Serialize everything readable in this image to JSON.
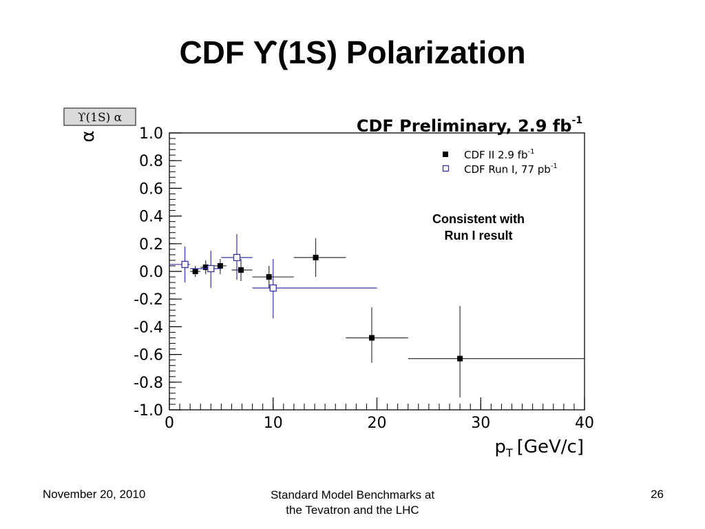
{
  "slide": {
    "title": "CDF ϒ(1S) Polarization",
    "footer_date": "November 20, 2010",
    "footer_center_line1": "Standard Model Benchmarks at",
    "footer_center_line2": "the Tevatron and the LHC",
    "page_number": "26"
  },
  "chart_data": {
    "type": "scatter",
    "title": "CDF Preliminary, 2.9 fb",
    "title_sup": "-1",
    "box_label": "ϒ(1S) α",
    "ylabel": "α",
    "xlabel_main": "p",
    "xlabel_sub": "T",
    "xlabel_unit": "[GeV/c]",
    "xlim": [
      0,
      40
    ],
    "ylim": [
      -1.0,
      1.0
    ],
    "x_ticks": [
      {
        "value": 0,
        "label": "0"
      },
      {
        "value": 10,
        "label": "10"
      },
      {
        "value": 20,
        "label": "20"
      },
      {
        "value": 30,
        "label": "30"
      },
      {
        "value": 40,
        "label": "40"
      }
    ],
    "y_ticks": [
      {
        "value": 1.0,
        "label": "1.0"
      },
      {
        "value": 0.8,
        "label": "0.8"
      },
      {
        "value": 0.6,
        "label": "0.6"
      },
      {
        "value": 0.4,
        "label": "0.4"
      },
      {
        "value": 0.2,
        "label": "0.2"
      },
      {
        "value": 0.0,
        "label": "0.0"
      },
      {
        "value": -0.2,
        "label": "-0.2"
      },
      {
        "value": -0.4,
        "label": "-0.4"
      },
      {
        "value": -0.6,
        "label": "-0.6"
      },
      {
        "value": -0.8,
        "label": "-0.8"
      },
      {
        "value": -1.0,
        "label": "-1.0"
      }
    ],
    "legend_placement": "top-right",
    "annotation_line1": "Consistent with",
    "annotation_line2": "Run I result",
    "series": [
      {
        "name": "CDF II 2.9 fb",
        "name_sup": "-1",
        "marker": "filled-square",
        "color": "#000000",
        "points": [
          {
            "x": 2.5,
            "y": 0.0,
            "xlo": 2.0,
            "xhi": 3.0,
            "ylo": -0.04,
            "yhi": 0.04
          },
          {
            "x": 3.5,
            "y": 0.03,
            "xlo": 3.0,
            "xhi": 4.0,
            "ylo": -0.02,
            "yhi": 0.08
          },
          {
            "x": 4.9,
            "y": 0.04,
            "xlo": 4.0,
            "xhi": 5.5,
            "ylo": -0.02,
            "yhi": 0.09
          },
          {
            "x": 6.9,
            "y": 0.01,
            "xlo": 6.0,
            "xhi": 8.0,
            "ylo": -0.07,
            "yhi": 0.09
          },
          {
            "x": 9.6,
            "y": -0.04,
            "xlo": 8.0,
            "xhi": 12.0,
            "ylo": -0.12,
            "yhi": 0.04
          },
          {
            "x": 14.1,
            "y": 0.1,
            "xlo": 12.0,
            "xhi": 17.0,
            "ylo": -0.04,
            "yhi": 0.24
          },
          {
            "x": 19.5,
            "y": -0.48,
            "xlo": 17.0,
            "xhi": 23.0,
            "ylo": -0.66,
            "yhi": -0.26
          },
          {
            "x": 28.0,
            "y": -0.63,
            "xlo": 23.0,
            "xhi": 40.0,
            "ylo": -0.91,
            "yhi": -0.25
          }
        ]
      },
      {
        "name": "CDF Run I, 77 pb",
        "name_sup": "-1",
        "marker": "open-square",
        "color": "#3333aa",
        "points": [
          {
            "x": 1.5,
            "y": 0.05,
            "xlo": 0.0,
            "xhi": 2.0,
            "ylo": -0.08,
            "yhi": 0.18
          },
          {
            "x": 4.0,
            "y": 0.02,
            "xlo": 2.0,
            "xhi": 5.0,
            "ylo": -0.12,
            "yhi": 0.15
          },
          {
            "x": 6.5,
            "y": 0.1,
            "xlo": 5.0,
            "xhi": 8.0,
            "ylo": -0.06,
            "yhi": 0.27
          },
          {
            "x": 10.0,
            "y": -0.12,
            "xlo": 8.0,
            "xhi": 20.0,
            "ylo": -0.34,
            "yhi": 0.09
          }
        ]
      }
    ]
  }
}
